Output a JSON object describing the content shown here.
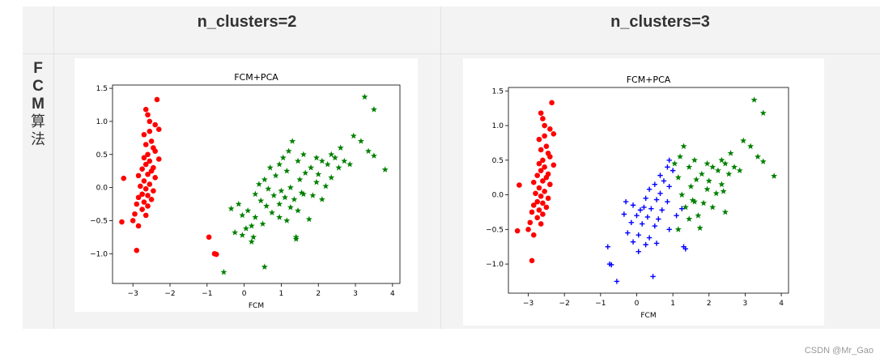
{
  "table": {
    "headers": [
      "n_clusters=2",
      "n_clusters=3"
    ],
    "row_label_chars": [
      "F",
      "C",
      "M",
      "算",
      "法"
    ]
  },
  "watermark": "CSDN @Mr_Gao",
  "chart_data": [
    {
      "type": "scatter",
      "title": "FCM+PCA",
      "xlabel": "FCM",
      "ylabel": "",
      "xlim": [
        -3.55,
        4.2
      ],
      "ylim": [
        -1.45,
        1.55
      ],
      "xticks": [
        -3,
        -2,
        -1,
        0,
        1,
        2,
        3,
        4
      ],
      "yticks": [
        -1.0,
        -0.5,
        0.0,
        0.5,
        1.0,
        1.5
      ],
      "xtick_labels": [
        "−3",
        "−2",
        "−1",
        "0",
        "1",
        "2",
        "3",
        "4"
      ],
      "ytick_labels": [
        "−1.0",
        "−0.5",
        "0.0",
        "0.5",
        "1.0",
        "1.5"
      ],
      "series": [
        {
          "color": "#ff0000",
          "marker": "circle",
          "points": [
            [
              -2.35,
              1.33
            ],
            [
              -2.65,
              1.18
            ],
            [
              -2.6,
              1.1
            ],
            [
              -2.55,
              1.0
            ],
            [
              -2.4,
              0.95
            ],
            [
              -2.3,
              0.88
            ],
            [
              -2.55,
              0.85
            ],
            [
              -2.7,
              0.8
            ],
            [
              -2.5,
              0.7
            ],
            [
              -2.65,
              0.65
            ],
            [
              -2.45,
              0.6
            ],
            [
              -2.4,
              0.55
            ],
            [
              -2.6,
              0.5
            ],
            [
              -2.7,
              0.45
            ],
            [
              -2.3,
              0.43
            ],
            [
              -2.55,
              0.4
            ],
            [
              -2.65,
              0.35
            ],
            [
              -2.45,
              0.3
            ],
            [
              -2.75,
              0.28
            ],
            [
              -2.5,
              0.25
            ],
            [
              -2.6,
              0.2
            ],
            [
              -2.85,
              0.18
            ],
            [
              -2.4,
              0.15
            ],
            [
              -3.25,
              0.14
            ],
            [
              -2.7,
              0.1
            ],
            [
              -2.55,
              0.05
            ],
            [
              -2.8,
              0.02
            ],
            [
              -2.65,
              -0.02
            ],
            [
              -2.45,
              -0.05
            ],
            [
              -2.75,
              -0.1
            ],
            [
              -2.6,
              -0.12
            ],
            [
              -2.85,
              -0.15
            ],
            [
              -2.5,
              -0.18
            ],
            [
              -2.7,
              -0.22
            ],
            [
              -2.9,
              -0.25
            ],
            [
              -2.6,
              -0.28
            ],
            [
              -2.75,
              -0.33
            ],
            [
              -2.95,
              -0.4
            ],
            [
              -2.65,
              -0.42
            ],
            [
              -3.0,
              -0.5
            ],
            [
              -3.3,
              -0.52
            ],
            [
              -2.85,
              -0.58
            ],
            [
              -2.9,
              -0.95
            ],
            [
              -0.95,
              -0.75
            ],
            [
              -0.8,
              -1.0
            ],
            [
              -0.75,
              -1.01
            ]
          ]
        },
        {
          "color": "#008000",
          "marker": "star",
          "points": [
            [
              3.25,
              1.37
            ],
            [
              3.5,
              1.18
            ],
            [
              2.95,
              0.78
            ],
            [
              3.15,
              0.7
            ],
            [
              2.6,
              0.6
            ],
            [
              3.35,
              0.55
            ],
            [
              3.5,
              0.48
            ],
            [
              2.35,
              0.5
            ],
            [
              2.45,
              0.45
            ],
            [
              2.7,
              0.4
            ],
            [
              2.85,
              0.35
            ],
            [
              3.8,
              0.27
            ],
            [
              1.3,
              0.7
            ],
            [
              1.2,
              0.55
            ],
            [
              1.6,
              0.5
            ],
            [
              1.95,
              0.45
            ],
            [
              2.1,
              0.4
            ],
            [
              2.25,
              0.35
            ],
            [
              2.55,
              0.3
            ],
            [
              1.8,
              0.3
            ],
            [
              1.05,
              0.45
            ],
            [
              1.45,
              0.4
            ],
            [
              0.95,
              0.35
            ],
            [
              0.7,
              0.3
            ],
            [
              1.15,
              0.25
            ],
            [
              1.65,
              0.22
            ],
            [
              2.0,
              0.2
            ],
            [
              2.35,
              0.15
            ],
            [
              0.85,
              0.18
            ],
            [
              1.5,
              0.12
            ],
            [
              0.55,
              0.12
            ],
            [
              1.95,
              0.08
            ],
            [
              2.2,
              0.02
            ],
            [
              0.4,
              0.05
            ],
            [
              1.25,
              0.0
            ],
            [
              0.65,
              -0.02
            ],
            [
              1.0,
              -0.05
            ],
            [
              1.55,
              -0.08
            ],
            [
              0.3,
              -0.1
            ],
            [
              0.8,
              -0.12
            ],
            [
              1.85,
              -0.12
            ],
            [
              1.1,
              -0.15
            ],
            [
              1.35,
              -0.18
            ],
            [
              0.45,
              -0.2
            ],
            [
              2.1,
              -0.18
            ],
            [
              0.95,
              -0.25
            ],
            [
              -0.15,
              -0.25
            ],
            [
              0.6,
              -0.28
            ],
            [
              1.25,
              -0.3
            ],
            [
              -0.35,
              -0.32
            ],
            [
              0.1,
              -0.35
            ],
            [
              0.75,
              -0.38
            ],
            [
              1.45,
              -0.35
            ],
            [
              -0.05,
              -0.42
            ],
            [
              0.3,
              -0.45
            ],
            [
              0.95,
              -0.45
            ],
            [
              1.15,
              -0.5
            ],
            [
              1.75,
              -0.48
            ],
            [
              0.5,
              -0.55
            ],
            [
              0.2,
              -0.58
            ],
            [
              -0.25,
              -0.68
            ],
            [
              -0.05,
              -0.72
            ],
            [
              0.25,
              -0.75
            ],
            [
              1.4,
              -0.75
            ],
            [
              1.4,
              -0.78
            ],
            [
              0.2,
              -0.82
            ],
            [
              -0.55,
              -1.28
            ],
            [
              0.55,
              -1.2
            ],
            [
              0.05,
              -0.62
            ],
            [
              1.6,
              -0.1
            ]
          ]
        }
      ]
    },
    {
      "type": "scatter",
      "title": "FCM+PCA",
      "xlabel": "FCM",
      "ylabel": "",
      "xlim": [
        -3.55,
        4.2
      ],
      "ylim": [
        -1.42,
        1.55
      ],
      "xticks": [
        -3,
        -2,
        -1,
        0,
        1,
        2,
        3,
        4
      ],
      "yticks": [
        -1.0,
        -0.5,
        0.0,
        0.5,
        1.0,
        1.5
      ],
      "xtick_labels": [
        "−3",
        "−2",
        "−1",
        "0",
        "1",
        "2",
        "3",
        "4"
      ],
      "ytick_labels": [
        "−1.0",
        "−0.5",
        "0.0",
        "0.5",
        "1.0",
        "1.5"
      ],
      "series": [
        {
          "color": "#ff0000",
          "marker": "circle",
          "points": [
            [
              -2.35,
              1.33
            ],
            [
              -2.65,
              1.18
            ],
            [
              -2.6,
              1.1
            ],
            [
              -2.55,
              1.0
            ],
            [
              -2.4,
              0.95
            ],
            [
              -2.3,
              0.88
            ],
            [
              -2.55,
              0.85
            ],
            [
              -2.7,
              0.8
            ],
            [
              -2.5,
              0.7
            ],
            [
              -2.65,
              0.65
            ],
            [
              -2.45,
              0.6
            ],
            [
              -2.4,
              0.55
            ],
            [
              -2.6,
              0.5
            ],
            [
              -2.7,
              0.45
            ],
            [
              -2.3,
              0.43
            ],
            [
              -2.55,
              0.4
            ],
            [
              -2.65,
              0.35
            ],
            [
              -2.45,
              0.3
            ],
            [
              -2.75,
              0.28
            ],
            [
              -2.5,
              0.25
            ],
            [
              -2.6,
              0.2
            ],
            [
              -2.85,
              0.18
            ],
            [
              -2.4,
              0.15
            ],
            [
              -3.25,
              0.14
            ],
            [
              -2.7,
              0.1
            ],
            [
              -2.55,
              0.05
            ],
            [
              -2.8,
              0.02
            ],
            [
              -2.65,
              -0.02
            ],
            [
              -2.45,
              -0.05
            ],
            [
              -2.75,
              -0.1
            ],
            [
              -2.6,
              -0.12
            ],
            [
              -2.85,
              -0.15
            ],
            [
              -2.5,
              -0.18
            ],
            [
              -2.7,
              -0.22
            ],
            [
              -2.9,
              -0.25
            ],
            [
              -2.6,
              -0.28
            ],
            [
              -2.75,
              -0.33
            ],
            [
              -2.95,
              -0.4
            ],
            [
              -2.65,
              -0.42
            ],
            [
              -3.0,
              -0.5
            ],
            [
              -3.3,
              -0.52
            ],
            [
              -2.85,
              -0.58
            ],
            [
              -2.9,
              -0.95
            ]
          ]
        },
        {
          "color": "#0000ff",
          "marker": "plus",
          "points": [
            [
              0.9,
              0.5
            ],
            [
              0.85,
              0.4
            ],
            [
              1.0,
              0.35
            ],
            [
              0.65,
              0.28
            ],
            [
              0.75,
              0.2
            ],
            [
              0.5,
              0.15
            ],
            [
              0.9,
              0.12
            ],
            [
              0.35,
              0.08
            ],
            [
              0.65,
              0.02
            ],
            [
              0.25,
              -0.05
            ],
            [
              0.55,
              -0.07
            ],
            [
              0.85,
              -0.1
            ],
            [
              -0.1,
              -0.15
            ],
            [
              0.2,
              -0.18
            ],
            [
              0.4,
              -0.2
            ],
            [
              0.7,
              -0.22
            ],
            [
              1.25,
              -0.2
            ],
            [
              -0.35,
              -0.28
            ],
            [
              0.0,
              -0.3
            ],
            [
              0.3,
              -0.32
            ],
            [
              0.6,
              -0.35
            ],
            [
              1.1,
              -0.3
            ],
            [
              -0.15,
              -0.4
            ],
            [
              0.15,
              -0.42
            ],
            [
              0.5,
              -0.45
            ],
            [
              0.9,
              -0.5
            ],
            [
              -0.25,
              -0.55
            ],
            [
              0.05,
              -0.58
            ],
            [
              0.35,
              -0.62
            ],
            [
              -0.1,
              -0.68
            ],
            [
              0.25,
              -0.72
            ],
            [
              0.55,
              -0.7
            ],
            [
              -0.8,
              -0.75
            ],
            [
              1.3,
              -0.75
            ],
            [
              1.35,
              -0.78
            ],
            [
              0.05,
              -0.82
            ],
            [
              -0.75,
              -1.0
            ],
            [
              -0.7,
              -1.01
            ],
            [
              -0.55,
              -1.25
            ],
            [
              0.45,
              -1.18
            ],
            [
              -0.3,
              -0.1
            ],
            [
              0.1,
              -0.22
            ]
          ]
        },
        {
          "color": "#008000",
          "marker": "star",
          "points": [
            [
              3.25,
              1.37
            ],
            [
              3.5,
              1.18
            ],
            [
              2.95,
              0.78
            ],
            [
              3.15,
              0.7
            ],
            [
              2.6,
              0.6
            ],
            [
              3.35,
              0.55
            ],
            [
              3.5,
              0.48
            ],
            [
              2.35,
              0.5
            ],
            [
              2.45,
              0.45
            ],
            [
              2.7,
              0.4
            ],
            [
              2.85,
              0.35
            ],
            [
              3.8,
              0.27
            ],
            [
              1.3,
              0.7
            ],
            [
              1.2,
              0.55
            ],
            [
              1.6,
              0.5
            ],
            [
              1.95,
              0.45
            ],
            [
              2.1,
              0.4
            ],
            [
              2.25,
              0.35
            ],
            [
              2.55,
              0.3
            ],
            [
              1.8,
              0.3
            ],
            [
              1.45,
              0.4
            ],
            [
              1.15,
              0.25
            ],
            [
              1.65,
              0.22
            ],
            [
              2.0,
              0.2
            ],
            [
              2.35,
              0.15
            ],
            [
              1.5,
              0.12
            ],
            [
              1.95,
              0.08
            ],
            [
              2.2,
              0.02
            ],
            [
              1.25,
              0.0
            ],
            [
              1.55,
              -0.08
            ],
            [
              1.85,
              -0.12
            ],
            [
              1.35,
              -0.18
            ],
            [
              2.1,
              -0.18
            ],
            [
              1.45,
              -0.35
            ],
            [
              1.75,
              -0.48
            ],
            [
              1.15,
              -0.5
            ],
            [
              1.6,
              -0.1
            ],
            [
              2.45,
              -0.25
            ],
            [
              1.7,
              -0.3
            ],
            [
              1.05,
              0.45
            ],
            [
              2.4,
              0.05
            ]
          ]
        }
      ]
    }
  ]
}
